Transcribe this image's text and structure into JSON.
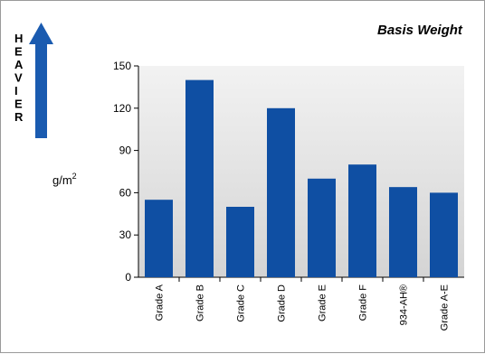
{
  "chart_data": {
    "type": "bar",
    "title": "Basis Weight",
    "ylabel_unit": "g/m",
    "ylabel_superscript": "2",
    "side_label": [
      "H",
      "E",
      "A",
      "V",
      "I",
      "E",
      "R"
    ],
    "categories": [
      "Grade A",
      "Grade B",
      "Grade C",
      "Grade D",
      "Grade E",
      "Grade F",
      "934-AH®",
      "Grade A-E"
    ],
    "values": [
      55,
      140,
      50,
      120,
      70,
      80,
      64,
      60
    ],
    "yticks": [
      0,
      30,
      60,
      90,
      120,
      150
    ],
    "ylim": [
      0,
      150
    ],
    "grid": false,
    "colors": {
      "bar": "#0f4fa3",
      "arrow": "#1a5bb0",
      "grad_top": "#f2f2f2",
      "grad_bottom": "#d4d4d4"
    }
  }
}
